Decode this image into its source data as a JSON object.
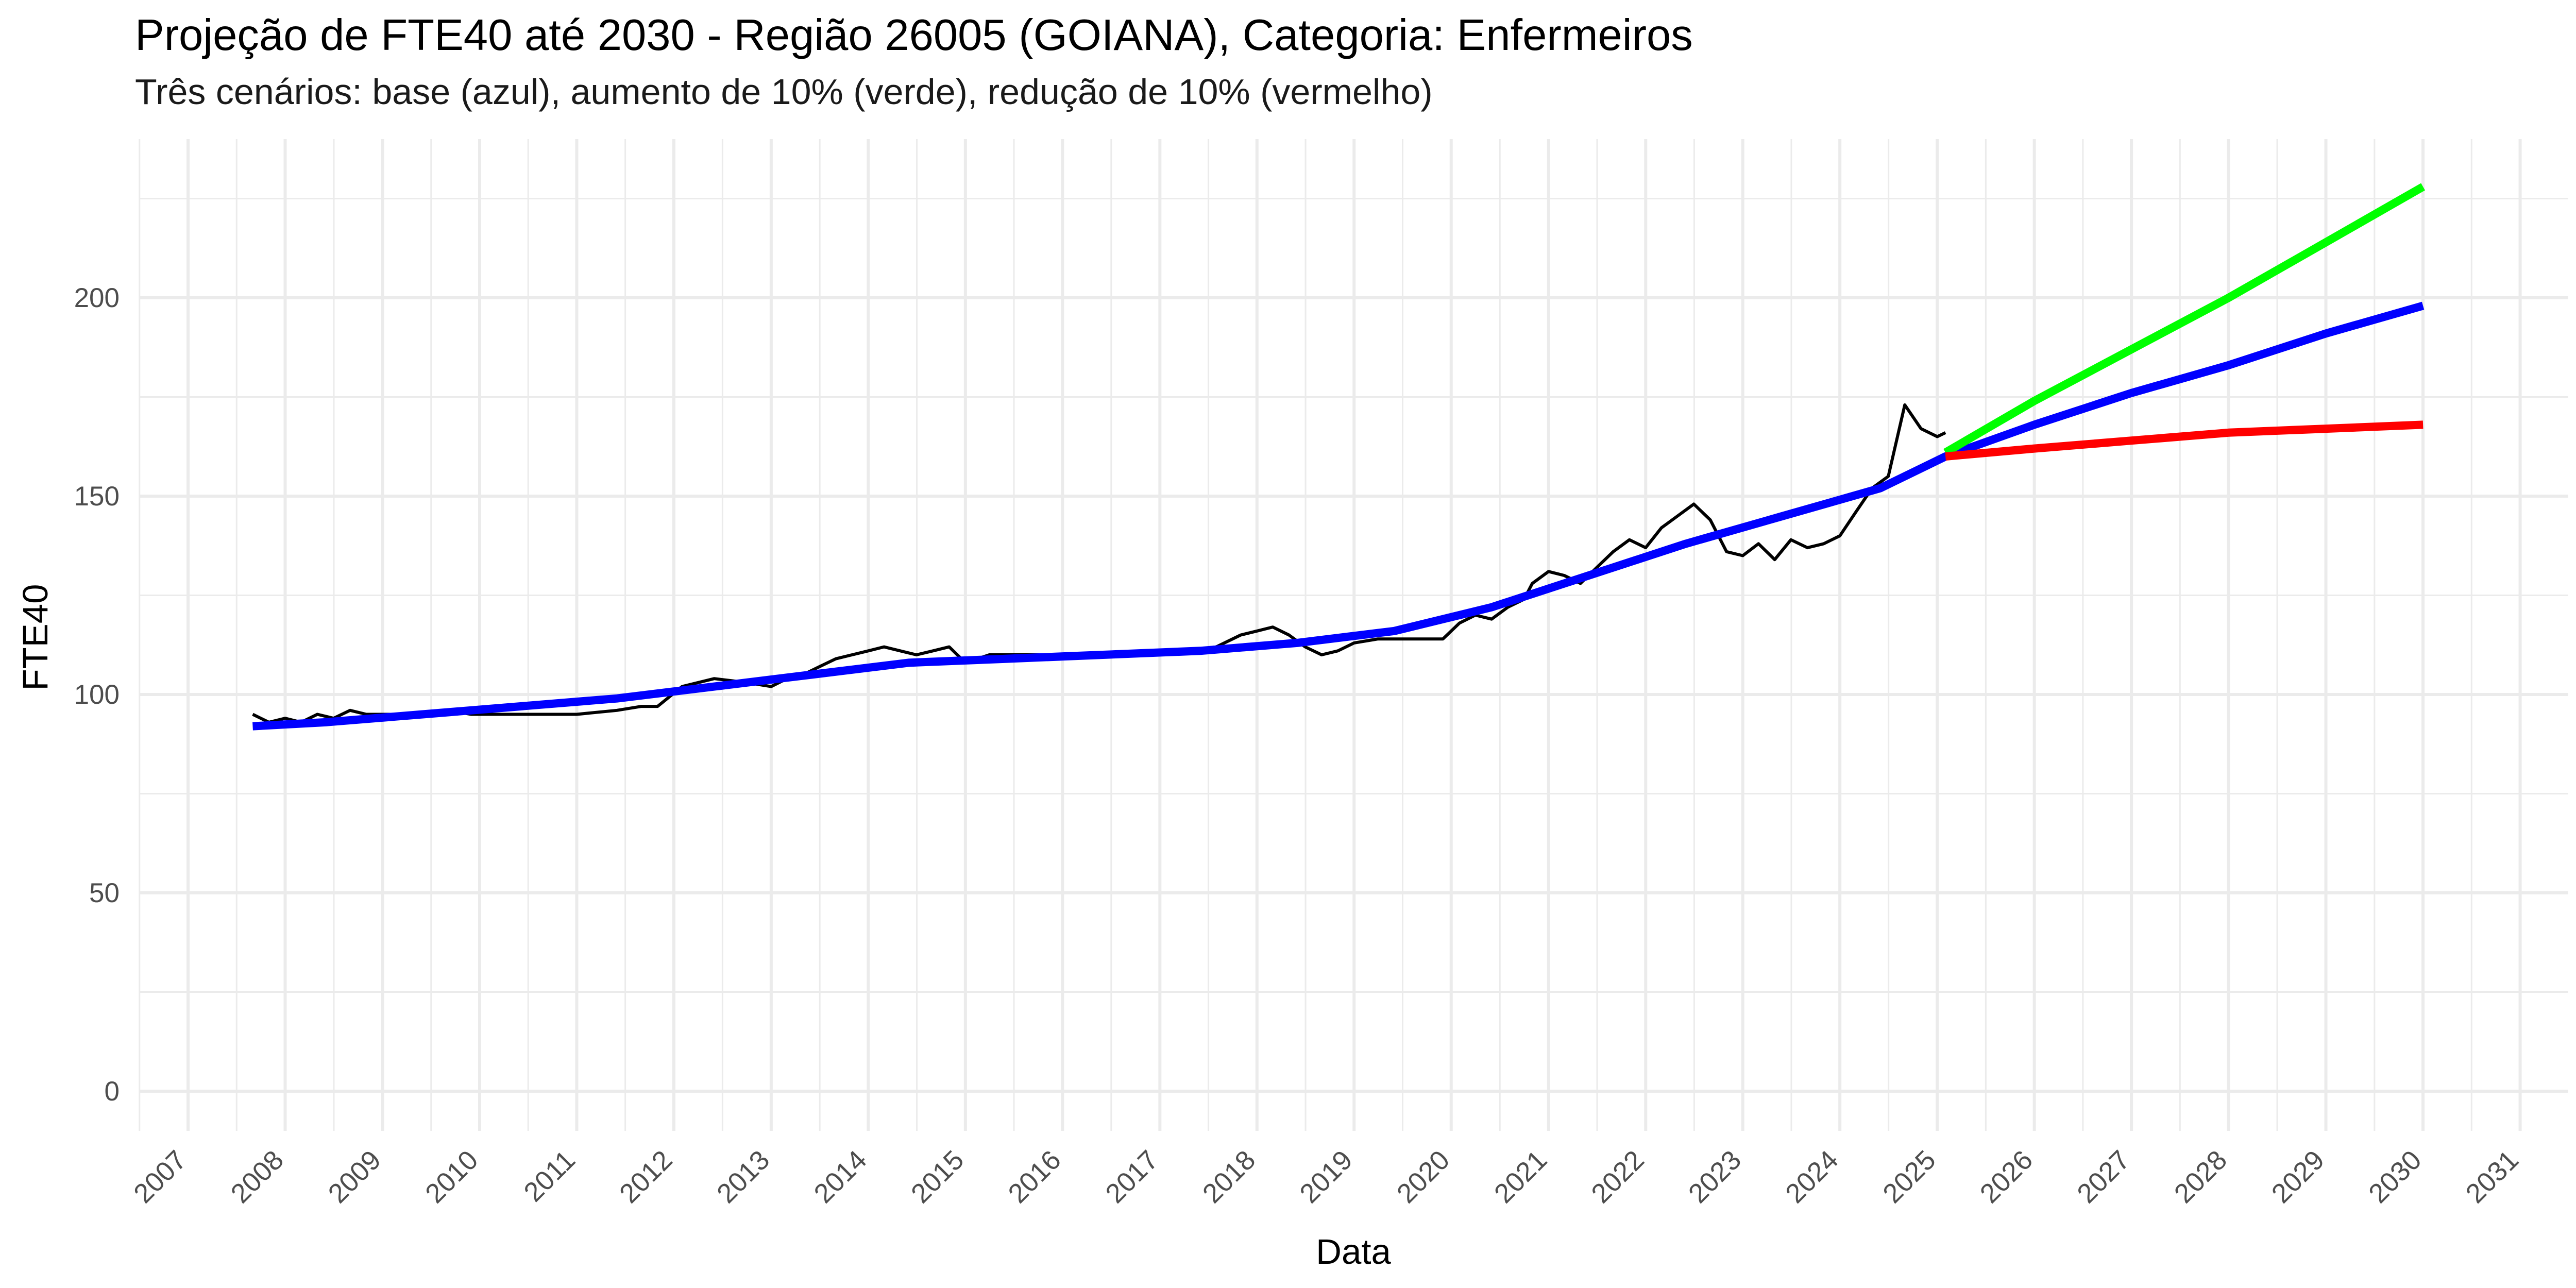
{
  "chart_data": {
    "type": "line",
    "title": "Projeção de FTE40 até 2030 - Região 26005 (GOIANA), Categoria: Enfermeiros",
    "subtitle": "Três cenários: base (azul), aumento de 10% (verde), redução de 10% (vermelho)",
    "xlabel": "Data",
    "ylabel": "FTE40",
    "x_type": "date",
    "xlim": [
      "2006-07-01",
      "2031-07-01"
    ],
    "ylim": [
      -10,
      240
    ],
    "y_ticks": [
      0,
      50,
      100,
      150,
      200
    ],
    "y_tick_labels": [
      "0",
      "50",
      "100",
      "150",
      "200"
    ],
    "x_ticks": [
      "2007-01-01",
      "2008-01-01",
      "2009-01-01",
      "2010-01-01",
      "2011-01-01",
      "2012-01-01",
      "2013-01-01",
      "2014-01-01",
      "2015-01-01",
      "2016-01-01",
      "2017-01-01",
      "2018-01-01",
      "2019-01-01",
      "2020-01-01",
      "2021-01-01",
      "2022-01-01",
      "2023-01-01",
      "2024-01-01",
      "2025-01-01",
      "2026-01-01",
      "2027-01-01",
      "2028-01-01",
      "2029-01-01",
      "2030-01-01",
      "2031-01-01"
    ],
    "x_tick_labels": [
      "2007",
      "2008",
      "2009",
      "2010",
      "2011",
      "2012",
      "2013",
      "2014",
      "2015",
      "2016",
      "2017",
      "2018",
      "2019",
      "2020",
      "2021",
      "2022",
      "2023",
      "2024",
      "2025",
      "2026",
      "2027",
      "2028",
      "2029",
      "2030",
      "2031"
    ],
    "grid": true,
    "legend": "none",
    "colors": {
      "observed": "#000000",
      "base": "#0000ff",
      "increase": "#00ff00",
      "decrease": "#ff0000",
      "grid": "#ebebeb"
    },
    "series": [
      {
        "key": "observed",
        "color": "#000000",
        "x": [
          "2007-09-01",
          "2007-11-01",
          "2008-01-01",
          "2008-03-01",
          "2008-05-01",
          "2008-07-01",
          "2008-09-01",
          "2008-11-01",
          "2009-01-01",
          "2009-03-01",
          "2009-06-01",
          "2009-09-01",
          "2009-12-01",
          "2010-01-01",
          "2010-06-01",
          "2011-01-01",
          "2011-06-01",
          "2011-09-01",
          "2011-11-01",
          "2012-02-01",
          "2012-06-01",
          "2012-10-01",
          "2013-01-01",
          "2013-03-01",
          "2013-05-01",
          "2013-07-01",
          "2013-09-01",
          "2013-11-01",
          "2014-01-01",
          "2014-03-01",
          "2014-05-01",
          "2014-07-01",
          "2014-09-01",
          "2014-11-01",
          "2015-01-01",
          "2015-04-01",
          "2015-08-01",
          "2015-12-01",
          "2016-04-01",
          "2016-08-01",
          "2016-12-01",
          "2017-04-01",
          "2017-08-01",
          "2017-11-01",
          "2018-01-01",
          "2018-03-01",
          "2018-05-01",
          "2018-07-01",
          "2018-09-01",
          "2018-11-01",
          "2019-01-01",
          "2019-04-01",
          "2019-08-01",
          "2019-10-01",
          "2019-12-01",
          "2020-02-01",
          "2020-04-01",
          "2020-06-01",
          "2020-08-01",
          "2020-10-01",
          "2020-11-01",
          "2021-01-01",
          "2021-03-01",
          "2021-05-01",
          "2021-07-01",
          "2021-09-01",
          "2021-11-01",
          "2022-01-01",
          "2022-03-01",
          "2022-05-01",
          "2022-07-01",
          "2022-09-01",
          "2022-11-01",
          "2023-01-01",
          "2023-03-01",
          "2023-05-01",
          "2023-07-01",
          "2023-09-01",
          "2023-11-01",
          "2024-01-01",
          "2024-03-01",
          "2024-05-01",
          "2024-07-01",
          "2024-09-01",
          "2024-11-01",
          "2025-01-01",
          "2025-02-01"
        ],
        "values": [
          95,
          93,
          94,
          93,
          95,
          94,
          96,
          95,
          95,
          95,
          95,
          96,
          95,
          95,
          95,
          95,
          96,
          97,
          97,
          102,
          104,
          103,
          102,
          104,
          105,
          107,
          109,
          110,
          111,
          112,
          111,
          110,
          111,
          112,
          108,
          110,
          110,
          110,
          110,
          110,
          110,
          111,
          112,
          115,
          116,
          117,
          115,
          112,
          110,
          111,
          113,
          114,
          114,
          114,
          114,
          118,
          120,
          119,
          122,
          124,
          128,
          131,
          130,
          128,
          132,
          136,
          139,
          137,
          142,
          145,
          148,
          144,
          136,
          135,
          138,
          134,
          139,
          137,
          138,
          140,
          146,
          152,
          155,
          173,
          167,
          165,
          166
        ]
      },
      {
        "key": "base",
        "color": "#0000ff",
        "x": [
          "2007-09-01",
          "2008-06-01",
          "2009-06-01",
          "2010-06-01",
          "2011-06-01",
          "2012-06-01",
          "2013-06-01",
          "2014-06-01",
          "2015-06-01",
          "2016-06-01",
          "2017-06-01",
          "2018-06-01",
          "2019-06-01",
          "2020-06-01",
          "2021-06-01",
          "2022-06-01",
          "2023-06-01",
          "2024-06-01",
          "2025-02-01",
          "2026-01-01",
          "2027-01-01",
          "2028-01-01",
          "2029-01-01",
          "2030-01-01"
        ],
        "values": [
          92,
          93,
          95,
          97,
          99,
          102,
          105,
          108,
          109,
          110,
          111,
          113,
          116,
          122,
          130,
          138,
          145,
          152,
          160,
          168,
          176,
          183,
          191,
          198
        ]
      },
      {
        "key": "increase",
        "color": "#00ff00",
        "x": [
          "2025-02-01",
          "2026-01-01",
          "2027-01-01",
          "2028-01-01",
          "2029-01-01",
          "2030-01-01"
        ],
        "values": [
          161,
          174,
          187,
          200,
          214,
          228
        ]
      },
      {
        "key": "decrease",
        "color": "#ff0000",
        "x": [
          "2025-02-01",
          "2026-01-01",
          "2027-01-01",
          "2028-01-01",
          "2029-01-01",
          "2030-01-01"
        ],
        "values": [
          160,
          162,
          164,
          166,
          167,
          168
        ]
      }
    ]
  }
}
